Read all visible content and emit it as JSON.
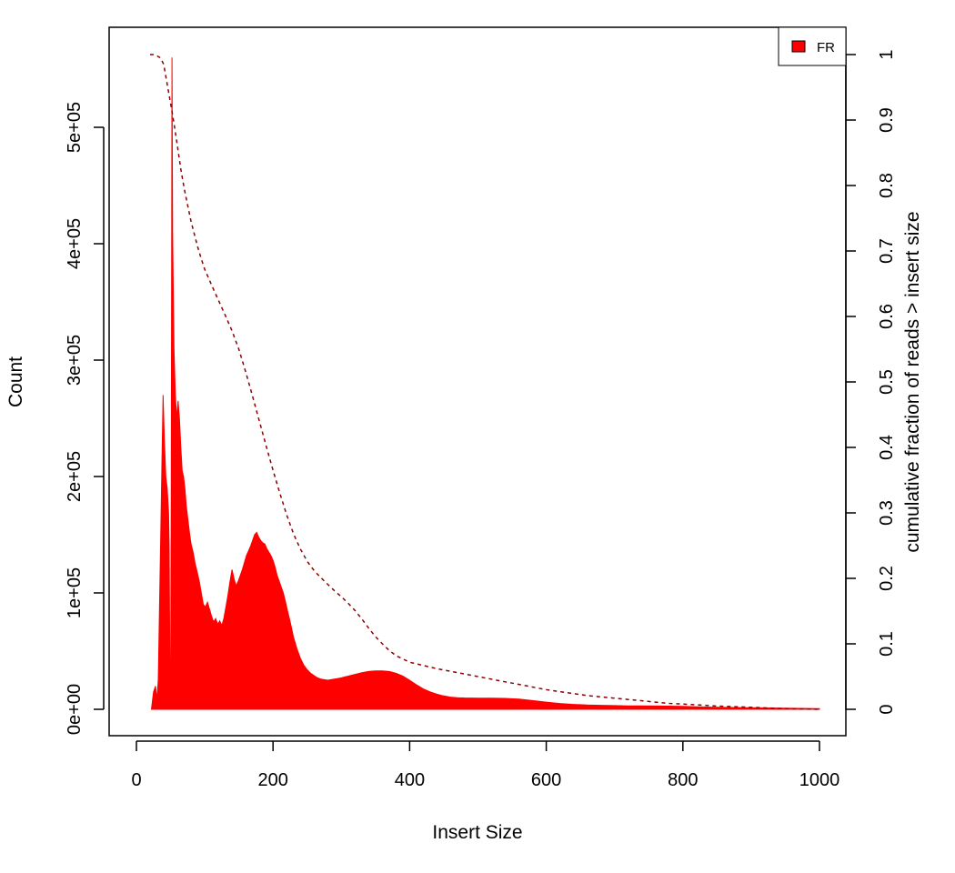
{
  "chart_data": {
    "type": "area",
    "title": "",
    "xlabel": "Insert Size",
    "ylabel": "Count",
    "y2label": "cumulative fraction of reads > insert size",
    "xlim": [
      0,
      1000
    ],
    "ylim": [
      0,
      560000
    ],
    "y2lim": [
      0,
      1
    ],
    "grid": false,
    "legend_position": "top-right",
    "x_ticks": [
      {
        "value": 0,
        "label": "0"
      },
      {
        "value": 200,
        "label": "200"
      },
      {
        "value": 400,
        "label": "400"
      },
      {
        "value": 600,
        "label": "600"
      },
      {
        "value": 800,
        "label": "800"
      },
      {
        "value": 1000,
        "label": "1000"
      }
    ],
    "y_ticks": [
      {
        "value": 0,
        "label": "0e+00"
      },
      {
        "value": 100000,
        "label": "1e+05"
      },
      {
        "value": 200000,
        "label": "2e+05"
      },
      {
        "value": 300000,
        "label": "3e+05"
      },
      {
        "value": 400000,
        "label": "4e+05"
      },
      {
        "value": 500000,
        "label": "5e+05"
      }
    ],
    "y2_ticks": [
      {
        "value": 0,
        "label": "0"
      },
      {
        "value": 0.1,
        "label": "0.1"
      },
      {
        "value": 0.2,
        "label": "0.2"
      },
      {
        "value": 0.3,
        "label": "0.3"
      },
      {
        "value": 0.4,
        "label": "0.4"
      },
      {
        "value": 0.5,
        "label": "0.5"
      },
      {
        "value": 0.6,
        "label": "0.6"
      },
      {
        "value": 0.7,
        "label": "0.7"
      },
      {
        "value": 0.8,
        "label": "0.8"
      },
      {
        "value": 0.9,
        "label": "0.9"
      },
      {
        "value": 1,
        "label": "1"
      }
    ],
    "series": [
      {
        "name": "FR",
        "color": "#ff0000",
        "axis": "left",
        "style": "filled-area",
        "points": [
          [
            22,
            0
          ],
          [
            25,
            15000
          ],
          [
            28,
            20000
          ],
          [
            30,
            8000
          ],
          [
            32,
            25000
          ],
          [
            35,
            130000
          ],
          [
            37,
            200000
          ],
          [
            39,
            270000
          ],
          [
            41,
            230000
          ],
          [
            43,
            200000
          ],
          [
            45,
            190000
          ],
          [
            47,
            170000
          ],
          [
            48,
            140000
          ],
          [
            49,
            30000
          ],
          [
            50,
            10000
          ],
          [
            51,
            200000
          ],
          [
            52,
            560000
          ],
          [
            53,
            410000
          ],
          [
            55,
            310000
          ],
          [
            57,
            270000
          ],
          [
            59,
            250000
          ],
          [
            61,
            265000
          ],
          [
            63,
            250000
          ],
          [
            65,
            225000
          ],
          [
            67,
            205000
          ],
          [
            69,
            200000
          ],
          [
            71,
            190000
          ],
          [
            73,
            175000
          ],
          [
            75,
            165000
          ],
          [
            78,
            150000
          ],
          [
            80,
            142000
          ],
          [
            83,
            135000
          ],
          [
            86,
            125000
          ],
          [
            89,
            118000
          ],
          [
            92,
            110000
          ],
          [
            95,
            100000
          ],
          [
            98,
            90000
          ],
          [
            101,
            88000
          ],
          [
            104,
            92000
          ],
          [
            107,
            86000
          ],
          [
            110,
            80000
          ],
          [
            113,
            75000
          ],
          [
            116,
            78000
          ],
          [
            119,
            73000
          ],
          [
            122,
            76000
          ],
          [
            125,
            72000
          ],
          [
            128,
            78000
          ],
          [
            131,
            88000
          ],
          [
            134,
            98000
          ],
          [
            137,
            110000
          ],
          [
            140,
            120000
          ],
          [
            143,
            112000
          ],
          [
            146,
            106000
          ],
          [
            149,
            110000
          ],
          [
            152,
            115000
          ],
          [
            155,
            120000
          ],
          [
            158,
            126000
          ],
          [
            161,
            132000
          ],
          [
            164,
            136000
          ],
          [
            167,
            140000
          ],
          [
            170,
            145000
          ],
          [
            173,
            150000
          ],
          [
            176,
            152000
          ],
          [
            179,
            148000
          ],
          [
            182,
            145000
          ],
          [
            185,
            143000
          ],
          [
            188,
            142000
          ],
          [
            191,
            138000
          ],
          [
            194,
            135000
          ],
          [
            197,
            132000
          ],
          [
            200,
            128000
          ],
          [
            203,
            122000
          ],
          [
            206,
            115000
          ],
          [
            209,
            110000
          ],
          [
            212,
            105000
          ],
          [
            215,
            100000
          ],
          [
            218,
            93000
          ],
          [
            221,
            85000
          ],
          [
            224,
            78000
          ],
          [
            227,
            70000
          ],
          [
            230,
            62000
          ],
          [
            235,
            52000
          ],
          [
            240,
            44000
          ],
          [
            245,
            38000
          ],
          [
            250,
            34000
          ],
          [
            255,
            31000
          ],
          [
            260,
            29000
          ],
          [
            265,
            27000
          ],
          [
            270,
            26000
          ],
          [
            275,
            25500
          ],
          [
            280,
            25000
          ],
          [
            285,
            25500
          ],
          [
            290,
            26000
          ],
          [
            295,
            26500
          ],
          [
            300,
            27000
          ],
          [
            310,
            28500
          ],
          [
            320,
            30000
          ],
          [
            330,
            31500
          ],
          [
            340,
            32500
          ],
          [
            350,
            33000
          ],
          [
            360,
            33000
          ],
          [
            370,
            32500
          ],
          [
            380,
            31000
          ],
          [
            390,
            28500
          ],
          [
            400,
            25000
          ],
          [
            410,
            21000
          ],
          [
            420,
            17500
          ],
          [
            430,
            15000
          ],
          [
            440,
            13000
          ],
          [
            450,
            11500
          ],
          [
            460,
            10500
          ],
          [
            470,
            10000
          ],
          [
            480,
            9800
          ],
          [
            500,
            9600
          ],
          [
            520,
            9500
          ],
          [
            540,
            9400
          ],
          [
            560,
            8800
          ],
          [
            580,
            7500
          ],
          [
            600,
            6200
          ],
          [
            620,
            5000
          ],
          [
            640,
            4200
          ],
          [
            660,
            3700
          ],
          [
            680,
            3400
          ],
          [
            700,
            3200
          ],
          [
            720,
            3000
          ],
          [
            740,
            2900
          ],
          [
            760,
            2800
          ],
          [
            780,
            2700
          ],
          [
            800,
            2500
          ],
          [
            850,
            1800
          ],
          [
            900,
            1300
          ],
          [
            950,
            900
          ],
          [
            1000,
            600
          ]
        ]
      },
      {
        "name": "cumulative",
        "color": "#8b0000",
        "axis": "right",
        "style": "dashed-line",
        "points": [
          [
            20,
            1.0
          ],
          [
            25,
            1.0
          ],
          [
            30,
            0.998
          ],
          [
            35,
            0.995
          ],
          [
            40,
            0.985
          ],
          [
            45,
            0.955
          ],
          [
            50,
            0.925
          ],
          [
            55,
            0.895
          ],
          [
            60,
            0.86
          ],
          [
            65,
            0.825
          ],
          [
            70,
            0.795
          ],
          [
            75,
            0.77
          ],
          [
            80,
            0.745
          ],
          [
            85,
            0.725
          ],
          [
            90,
            0.705
          ],
          [
            95,
            0.688
          ],
          [
            100,
            0.672
          ],
          [
            110,
            0.648
          ],
          [
            120,
            0.625
          ],
          [
            130,
            0.602
          ],
          [
            140,
            0.578
          ],
          [
            150,
            0.55
          ],
          [
            160,
            0.515
          ],
          [
            170,
            0.478
          ],
          [
            180,
            0.44
          ],
          [
            190,
            0.402
          ],
          [
            200,
            0.365
          ],
          [
            210,
            0.33
          ],
          [
            220,
            0.297
          ],
          [
            230,
            0.268
          ],
          [
            240,
            0.245
          ],
          [
            250,
            0.226
          ],
          [
            260,
            0.212
          ],
          [
            270,
            0.201
          ],
          [
            280,
            0.191
          ],
          [
            290,
            0.181
          ],
          [
            300,
            0.172
          ],
          [
            310,
            0.162
          ],
          [
            320,
            0.151
          ],
          [
            330,
            0.138
          ],
          [
            340,
            0.124
          ],
          [
            350,
            0.111
          ],
          [
            360,
            0.1
          ],
          [
            370,
            0.09
          ],
          [
            380,
            0.082
          ],
          [
            390,
            0.077
          ],
          [
            400,
            0.072
          ],
          [
            420,
            0.067
          ],
          [
            440,
            0.062
          ],
          [
            460,
            0.058
          ],
          [
            480,
            0.054
          ],
          [
            500,
            0.05
          ],
          [
            520,
            0.046
          ],
          [
            540,
            0.042
          ],
          [
            560,
            0.038
          ],
          [
            580,
            0.034
          ],
          [
            600,
            0.03
          ],
          [
            620,
            0.027
          ],
          [
            640,
            0.024
          ],
          [
            660,
            0.021
          ],
          [
            680,
            0.019
          ],
          [
            700,
            0.017
          ],
          [
            720,
            0.015
          ],
          [
            740,
            0.013
          ],
          [
            760,
            0.011
          ],
          [
            780,
            0.009
          ],
          [
            800,
            0.008
          ],
          [
            850,
            0.005
          ],
          [
            900,
            0.003
          ],
          [
            950,
            0.001
          ],
          [
            1000,
            0.0
          ]
        ]
      }
    ],
    "legend": [
      {
        "label": "FR",
        "color": "#ff0000"
      }
    ]
  }
}
